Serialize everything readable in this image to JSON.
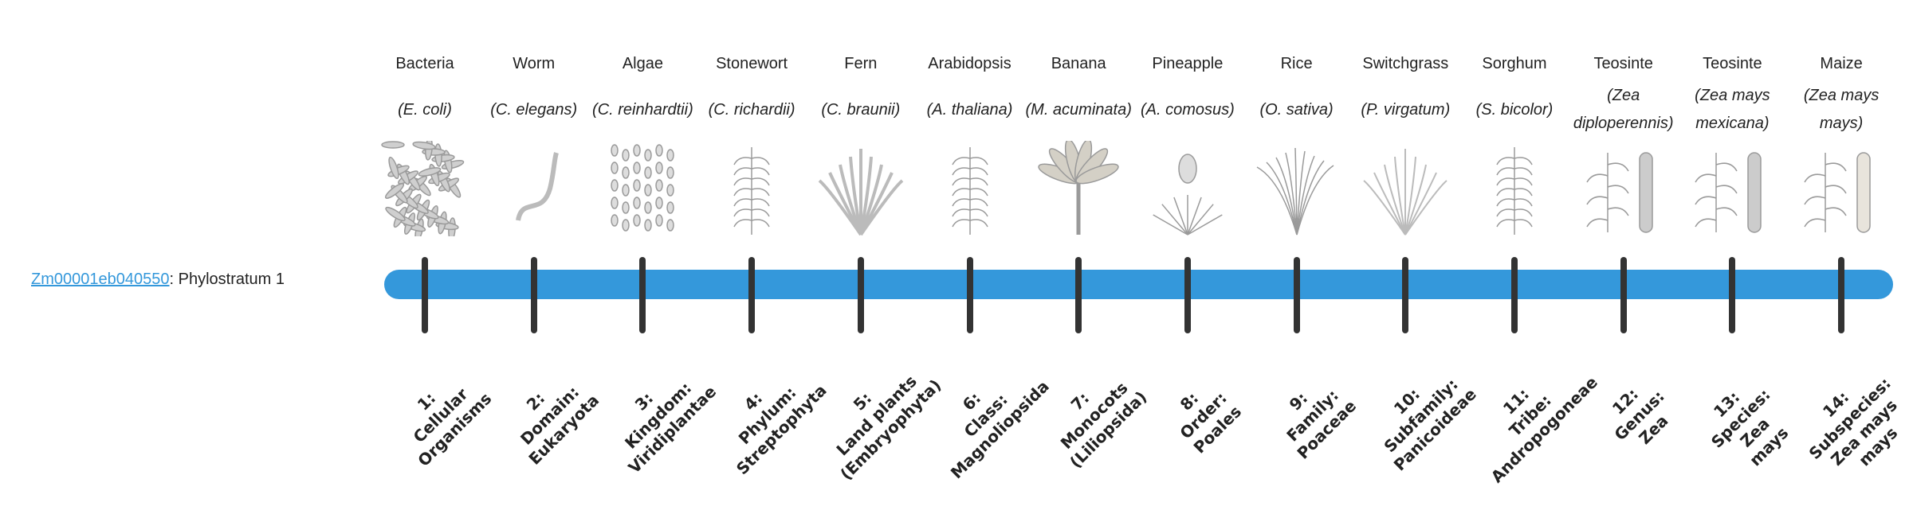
{
  "gene": {
    "id": "Zm00001eb040550",
    "separator": ":",
    "stratum_text": " Phylostratum 1"
  },
  "colors": {
    "bar": "#3498db",
    "tick": "#333333",
    "link": "#3498db",
    "illustration": "#9a9a9a"
  },
  "organisms": [
    {
      "common": "Bacteria",
      "species": "(E. coli)",
      "icon": "bacteria-illustration",
      "stratum": [
        "1:",
        "Cellular",
        "Organisms"
      ]
    },
    {
      "common": "Worm",
      "species": "(C. elegans)",
      "icon": "worm-illustration",
      "stratum": [
        "2:",
        "Domain:",
        "Eukaryota"
      ]
    },
    {
      "common": "Algae",
      "species": "(C. reinhardtii)",
      "icon": "algae-illustration",
      "stratum": [
        "3:",
        "Kingdom:",
        "Viridiplantae"
      ]
    },
    {
      "common": "Stonewort",
      "species": "(C. richardii)",
      "icon": "stonewort-illustration",
      "stratum": [
        "4:",
        "Phylum:",
        "Streptophyta"
      ]
    },
    {
      "common": "Fern",
      "species": "(C. braunii)",
      "icon": "fern-illustration",
      "stratum": [
        "5:",
        "Land plants",
        "(Embryophyta)"
      ]
    },
    {
      "common": "Arabidopsis",
      "species": "(A. thaliana)",
      "icon": "arabidopsis-illustration",
      "stratum": [
        "6:",
        "Class:",
        "Magnoliopsida"
      ]
    },
    {
      "common": "Banana",
      "species": "(M. acuminata)",
      "icon": "banana-illustration",
      "stratum": [
        "7:",
        "Monocots",
        "(Liliopsida)"
      ]
    },
    {
      "common": "Pineapple",
      "species": "(A. comosus)",
      "icon": "pineapple-illustration",
      "stratum": [
        "8:",
        "Order:",
        "Poales"
      ]
    },
    {
      "common": "Rice",
      "species": "(O. sativa)",
      "icon": "rice-illustration",
      "stratum": [
        "9:",
        "Family:",
        "Poaceae"
      ]
    },
    {
      "common": "Switchgrass",
      "species": "(P. virgatum)",
      "icon": "switchgrass-illustration",
      "stratum": [
        "10:",
        "Subfamily:",
        "Panicoideae"
      ]
    },
    {
      "common": "Sorghum",
      "species": "(S. bicolor)",
      "icon": "sorghum-illustration",
      "stratum": [
        "11:",
        "Tribe:",
        "Andropogoneae"
      ]
    },
    {
      "common": "Teosinte",
      "species": "(Zea diploperennis)",
      "icon": "teosinte-illustration",
      "stratum": [
        "12:",
        "Genus:",
        "Zea"
      ]
    },
    {
      "common": "Teosinte",
      "species": "(Zea mays mexicana)",
      "icon": "teosinte-mexicana-illustration",
      "stratum": [
        "13:",
        "Species:",
        "Zea",
        "mays"
      ]
    },
    {
      "common": "Maize",
      "species": "(Zea mays mays)",
      "icon": "maize-illustration",
      "stratum": [
        "14:",
        "Subspecies:",
        "Zea mays",
        "mays"
      ]
    }
  ]
}
